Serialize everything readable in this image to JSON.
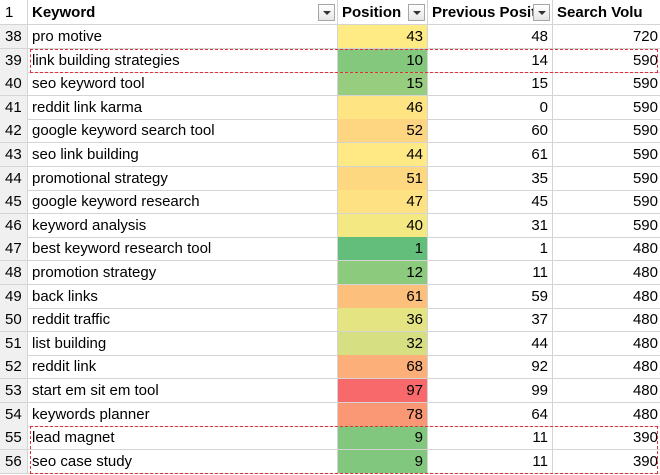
{
  "table": {
    "header": {
      "row_number": 1,
      "columns": [
        "Keyword",
        "Position",
        "Previous Positi",
        "Search Volu"
      ]
    },
    "rows": [
      [
        38,
        "pro motive",
        43,
        48,
        720
      ],
      [
        39,
        "link building strategies",
        10,
        14,
        590
      ],
      [
        40,
        "seo keyword tool",
        15,
        15,
        590
      ],
      [
        41,
        "reddit link karma",
        46,
        0,
        590
      ],
      [
        42,
        "google keyword search tool",
        52,
        60,
        590
      ],
      [
        43,
        "seo link building",
        44,
        61,
        590
      ],
      [
        44,
        "promotional strategy",
        51,
        35,
        590
      ],
      [
        45,
        "google keyword research",
        47,
        45,
        590
      ],
      [
        46,
        "keyword analysis",
        40,
        31,
        590
      ],
      [
        47,
        "best keyword research tool",
        1,
        1,
        480
      ],
      [
        48,
        "promotion strategy",
        12,
        11,
        480
      ],
      [
        49,
        "back links",
        61,
        59,
        480
      ],
      [
        50,
        "reddit traffic",
        36,
        37,
        480
      ],
      [
        51,
        "list building",
        32,
        44,
        480
      ],
      [
        52,
        "reddit link",
        68,
        92,
        480
      ],
      [
        53,
        "start em sit em tool",
        97,
        99,
        480
      ],
      [
        54,
        "keywords planner",
        78,
        64,
        480
      ],
      [
        55,
        "lead magnet",
        9,
        11,
        390
      ],
      [
        56,
        "seo case study",
        9,
        11,
        390
      ]
    ]
  }
}
